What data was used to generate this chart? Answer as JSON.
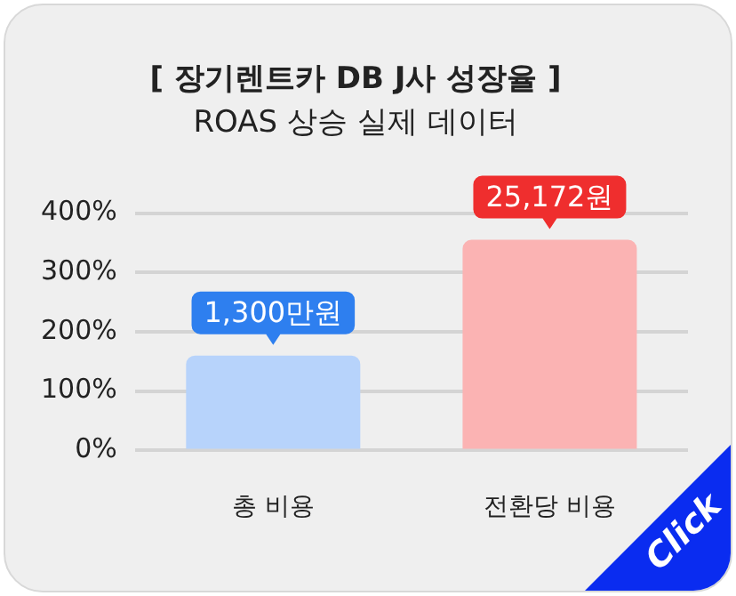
{
  "chart_data": {
    "type": "bar",
    "title": "[ 장기렌트카 DB J사 성장율 ]",
    "subtitle": "ROAS 상승 실제 데이터",
    "categories": [
      "총 비용",
      "전환당 비용"
    ],
    "values": [
      160,
      355
    ],
    "colors": [
      "#b7d3fb",
      "#fbb3b3"
    ],
    "ylim": [
      0,
      400
    ],
    "yticks": [
      {
        "value": 0,
        "label": "0%"
      },
      {
        "value": 100,
        "label": "100%"
      },
      {
        "value": 200,
        "label": "200%"
      },
      {
        "value": 300,
        "label": "300%"
      },
      {
        "value": 400,
        "label": "400%"
      }
    ],
    "grid": "y",
    "legend": false,
    "annotations": [
      {
        "text": "1,300만원",
        "x": "총 비용",
        "y": 160
      },
      {
        "text": "25,172원",
        "x": "전환당 비용",
        "y": 355
      },
      "Click"
    ]
  }
}
